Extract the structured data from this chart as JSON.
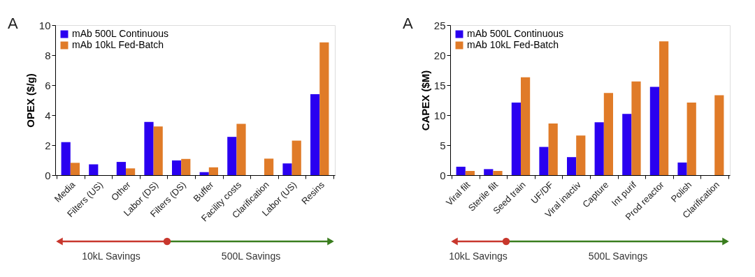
{
  "chart_data": [
    {
      "type": "bar",
      "ylabel": "OPEX ($/g)",
      "annotations": [
        "A",
        "10kL Savings",
        "500L Savings"
      ],
      "categories": [
        "Media",
        "Filters (US)",
        "Other",
        "Labor (DS)",
        "Filters (DS)",
        "Buffer",
        "Facility costs",
        "Clarification",
        "Labor (US)",
        "Resins"
      ],
      "series": [
        {
          "name": "mAb 500L Continuous",
          "color": "#2a00f0",
          "values": [
            2.2,
            0.72,
            0.88,
            3.55,
            0.98,
            0.2,
            2.55,
            null,
            0.78,
            5.4
          ]
        },
        {
          "name": "mAb 10kL Fed-Batch",
          "color": "#e07b28",
          "values": [
            0.82,
            null,
            0.45,
            3.25,
            1.08,
            0.52,
            3.42,
            1.1,
            2.3,
            8.85
          ]
        }
      ],
      "ylim": [
        0,
        10
      ],
      "yticks": [
        0,
        2,
        4,
        6,
        8,
        10
      ],
      "grid": false,
      "legend": "top left"
    },
    {
      "type": "bar",
      "ylabel": "CAPEX ($M)",
      "annotations": [
        "A",
        "10kL Savings",
        "500L Savings"
      ],
      "categories": [
        "Viral filt",
        "Sterile filt",
        "Seed train",
        "UF/DF",
        "Viral inactiv",
        "Capture",
        "Int purif",
        "Prod reactor",
        "Polish",
        "Clarification"
      ],
      "series": [
        {
          "name": "mAb 500L Continuous",
          "color": "#2a00f0",
          "values": [
            1.4,
            1.0,
            12.1,
            4.7,
            3.0,
            8.8,
            10.2,
            14.7,
            2.1,
            null
          ]
        },
        {
          "name": "mAb 10kL Fed-Batch",
          "color": "#e07b28",
          "values": [
            0.7,
            0.7,
            16.3,
            8.6,
            6.6,
            13.7,
            15.6,
            22.3,
            12.1,
            13.3
          ]
        }
      ],
      "ylim": [
        0,
        25
      ],
      "yticks": [
        0,
        5,
        10,
        15,
        20,
        25
      ],
      "grid": false,
      "legend": "top left"
    }
  ]
}
